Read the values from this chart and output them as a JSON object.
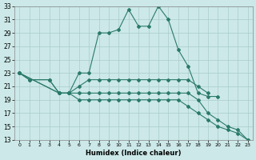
{
  "xlabel": "Humidex (Indice chaleur)",
  "bg_color": "#cce8e8",
  "line_color": "#2a7a6a",
  "grid_color": "#aacccc",
  "xlim": [
    -0.5,
    23.5
  ],
  "ylim": [
    13,
    33
  ],
  "yticks": [
    13,
    15,
    17,
    19,
    21,
    23,
    25,
    27,
    29,
    31,
    33
  ],
  "xticks": [
    0,
    1,
    2,
    3,
    4,
    5,
    6,
    7,
    8,
    9,
    10,
    11,
    12,
    13,
    14,
    15,
    16,
    17,
    18,
    19,
    20,
    21,
    22,
    23
  ],
  "line1_x": [
    0,
    1,
    3,
    4,
    5,
    6,
    7,
    8,
    9,
    10,
    11,
    12,
    13,
    14,
    15,
    16,
    17,
    18,
    19,
    20
  ],
  "line1_y": [
    23,
    22,
    22,
    20,
    20,
    23,
    23,
    29,
    29,
    29.5,
    32.5,
    30,
    30,
    33,
    31,
    26.5,
    24,
    20,
    19.5,
    19.5
  ],
  "line2_x": [
    0,
    1,
    3,
    4,
    5,
    6,
    7,
    8,
    9,
    10,
    11,
    12,
    13,
    14,
    15,
    16,
    17,
    18,
    19
  ],
  "line2_y": [
    23,
    22,
    22,
    20,
    20,
    21,
    22,
    22,
    22,
    22,
    22,
    22,
    22,
    22,
    22,
    22,
    22,
    21,
    20
  ],
  "line3_x": [
    0,
    4,
    5,
    6,
    7,
    8,
    9,
    10,
    11,
    12,
    13,
    14,
    15,
    16,
    17,
    18,
    19,
    20,
    21,
    22,
    23
  ],
  "line3_y": [
    23,
    20,
    20,
    20,
    20,
    20,
    20,
    20,
    20,
    20,
    20,
    20,
    20,
    20,
    20,
    19,
    17,
    16,
    15,
    14.5,
    13
  ],
  "line4_x": [
    0,
    4,
    5,
    6,
    7,
    8,
    9,
    10,
    11,
    12,
    13,
    14,
    15,
    16,
    17,
    18,
    19,
    20,
    21,
    22,
    23
  ],
  "line4_y": [
    23,
    20,
    20,
    19,
    19,
    19,
    19,
    19,
    19,
    19,
    19,
    19,
    19,
    19,
    18,
    17,
    16,
    15,
    14.5,
    14,
    13
  ]
}
